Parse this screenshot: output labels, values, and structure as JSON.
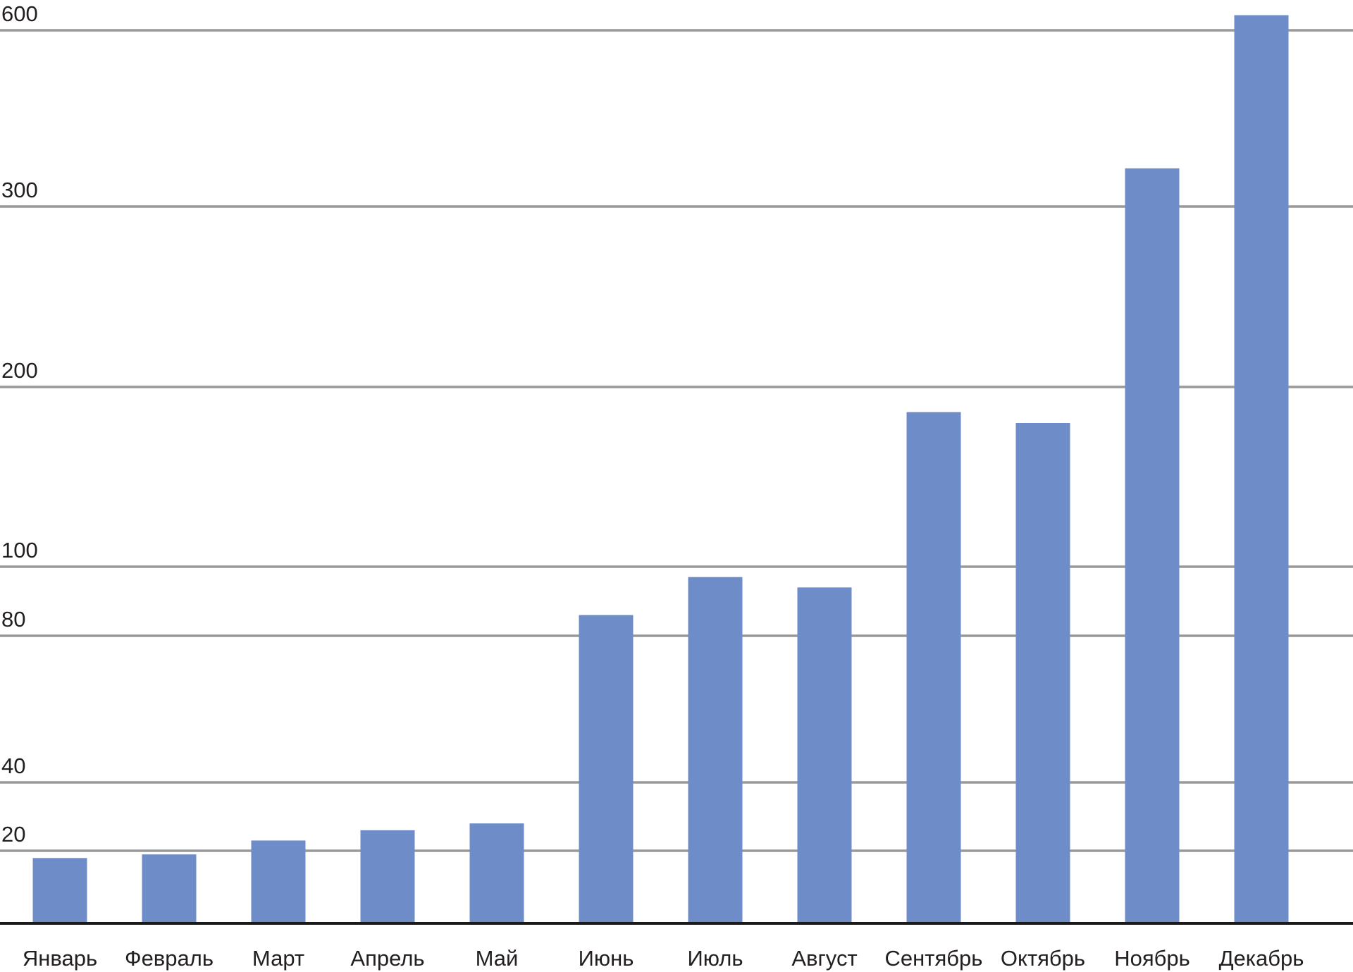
{
  "chart_data": {
    "type": "bar",
    "title": "",
    "xlabel": "",
    "ylabel": "",
    "scale": "non-linear (piecewise: ticks 20, 40, 80, 100, 200, 300, 600)",
    "yticks": [
      20,
      40,
      80,
      100,
      200,
      300,
      600
    ],
    "ylim": [
      0,
      620
    ],
    "grid": true,
    "bar_color": "#6e8dc8",
    "categories": [
      "Январь",
      "Февраль",
      "Март",
      "Апрель",
      "Май",
      "Июнь",
      "Июль",
      "Август",
      "Сентябрь",
      "Октябрь",
      "Ноябрь",
      "Декабрь"
    ],
    "values": [
      18,
      19,
      23,
      26,
      28,
      86,
      97,
      94,
      186,
      180,
      365,
      625
    ]
  }
}
